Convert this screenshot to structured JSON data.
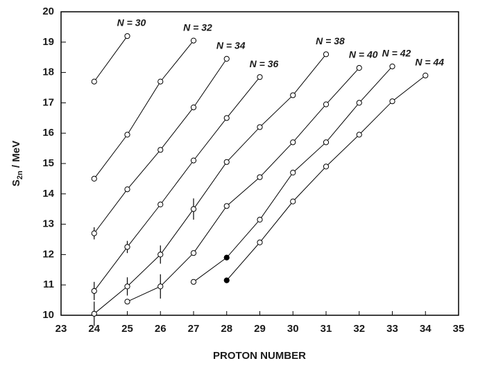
{
  "chart_data": {
    "type": "line",
    "x_label": "PROTON NUMBER",
    "y_label": {
      "symbol": "S",
      "subscript": "2n",
      "unit": " / MeV"
    },
    "xlim": [
      23,
      35
    ],
    "xticks": [
      23,
      24,
      25,
      26,
      27,
      28,
      29,
      30,
      31,
      32,
      33,
      34,
      35
    ],
    "ylim": [
      10,
      20
    ],
    "yticks": [
      10,
      11,
      12,
      13,
      14,
      15,
      16,
      17,
      18,
      19,
      20
    ],
    "color": "#000000",
    "series": [
      {
        "name": "N = 30",
        "x": [
          24,
          25
        ],
        "values": [
          17.7,
          19.2
        ],
        "errors": [
          null,
          null
        ],
        "filled": [
          false,
          false
        ]
      },
      {
        "name": "N = 32",
        "x": [
          24,
          25,
          26,
          27
        ],
        "values": [
          14.5,
          15.95,
          17.7,
          19.05
        ],
        "errors": [
          null,
          null,
          null,
          null
        ],
        "filled": [
          false,
          false,
          false,
          false
        ]
      },
      {
        "name": "N = 34",
        "x": [
          24,
          25,
          26,
          27,
          28
        ],
        "values": [
          12.7,
          14.15,
          15.45,
          16.85,
          18.45
        ],
        "errors": [
          0.2,
          null,
          null,
          null,
          null
        ],
        "filled": [
          false,
          false,
          false,
          false,
          false
        ]
      },
      {
        "name": "N = 36",
        "x": [
          24,
          25,
          26,
          27,
          28,
          29
        ],
        "values": [
          10.8,
          12.25,
          13.65,
          15.1,
          16.5,
          17.85
        ],
        "errors": [
          0.3,
          0.2,
          null,
          null,
          null,
          null
        ],
        "filled": [
          false,
          false,
          false,
          false,
          false,
          false
        ]
      },
      {
        "name": "N = 38",
        "x": [
          24,
          25,
          26,
          27,
          28,
          29,
          30,
          31
        ],
        "values": [
          10.05,
          10.95,
          12.0,
          13.5,
          15.05,
          16.2,
          17.25,
          18.6
        ],
        "errors": [
          0.4,
          0.3,
          0.3,
          0.35,
          null,
          null,
          null,
          null
        ],
        "filled": [
          false,
          false,
          false,
          false,
          false,
          false,
          false,
          false
        ]
      },
      {
        "name": "N = 40",
        "x": [
          25,
          26,
          27,
          28,
          29,
          30,
          31,
          32
        ],
        "values": [
          10.45,
          10.95,
          12.05,
          13.6,
          14.55,
          15.7,
          16.95,
          18.15
        ],
        "errors": [
          null,
          0.4,
          null,
          null,
          null,
          null,
          null,
          null
        ],
        "filled": [
          false,
          false,
          false,
          false,
          false,
          false,
          false,
          false
        ]
      },
      {
        "name": "N = 42",
        "x": [
          27,
          28,
          29,
          30,
          31,
          32,
          33
        ],
        "values": [
          11.1,
          11.9,
          13.15,
          14.7,
          15.7,
          17.0,
          18.2
        ],
        "errors": [
          null,
          null,
          null,
          null,
          null,
          null,
          null
        ],
        "filled": [
          false,
          true,
          false,
          false,
          false,
          false,
          false
        ]
      },
      {
        "name": "N = 44",
        "x": [
          28,
          29,
          30,
          31,
          32,
          33,
          34
        ],
        "values": [
          11.15,
          12.4,
          13.75,
          14.9,
          15.95,
          17.05,
          17.9
        ],
        "errors": [
          null,
          null,
          null,
          null,
          null,
          null,
          null
        ],
        "filled": [
          true,
          false,
          false,
          false,
          false,
          false,
          false
        ]
      }
    ]
  }
}
